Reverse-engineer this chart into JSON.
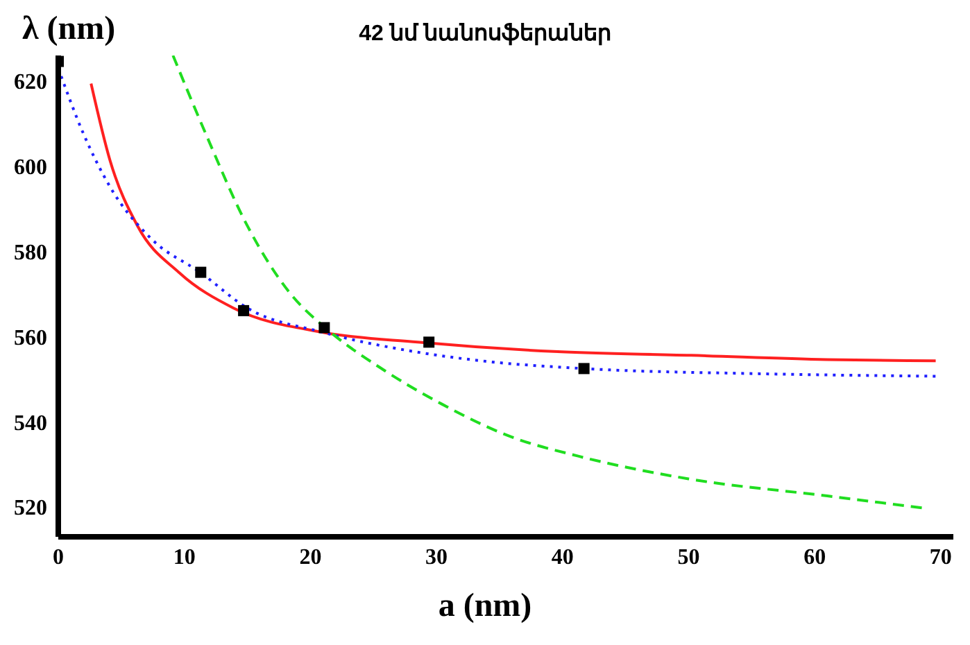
{
  "chart_data": {
    "type": "line",
    "title": "42 նմ նանոսֆերաներ",
    "xlabel": "a (nm)",
    "ylabel": "λ (nm)",
    "xlim": [
      0,
      71
    ],
    "ylim": [
      513,
      626
    ],
    "xticks": [
      0,
      10,
      20,
      30,
      40,
      50,
      60,
      70
    ],
    "yticks": [
      520,
      540,
      560,
      580,
      600,
      620
    ],
    "series": [
      {
        "type": "scatter",
        "marker": "square",
        "color": "#000000",
        "x": [
          0,
          11.3,
          14.7,
          21.1,
          29.4,
          41.7
        ],
        "values": [
          624.6,
          575.1,
          566.1,
          562.1,
          558.7,
          552.5
        ]
      },
      {
        "line_style": "solid",
        "color": "#ff2020",
        "x": [
          2.6,
          4.1,
          6.3,
          9.6,
          13.9,
          21,
          28.5,
          39.3,
          50.2,
          61,
          69.6
        ],
        "values": [
          619.4,
          601.4,
          585.9,
          575,
          566.7,
          561,
          558.7,
          556.5,
          555.6,
          554.6,
          554.3
        ]
      },
      {
        "line_style": "dotted",
        "color": "#2020ff",
        "x": [
          0,
          2,
          4.1,
          7.4,
          11.3,
          15,
          21,
          28.2,
          33.6,
          41.7,
          55.4,
          69.6
        ],
        "values": [
          623,
          607.6,
          595.2,
          582.9,
          575,
          566.7,
          561,
          556.5,
          554.3,
          552.5,
          551.3,
          550.7
        ]
      },
      {
        "line_style": "dashed",
        "color": "#20dd20",
        "x": [
          9.1,
          11.7,
          15,
          18.3,
          21.5,
          25.9,
          30.4,
          35.9,
          41.3,
          50,
          61,
          68.5
        ],
        "values": [
          626,
          607.6,
          586,
          570.5,
          561.3,
          552,
          544.2,
          536.5,
          531.9,
          526.6,
          522.6,
          519.8
        ]
      }
    ]
  }
}
